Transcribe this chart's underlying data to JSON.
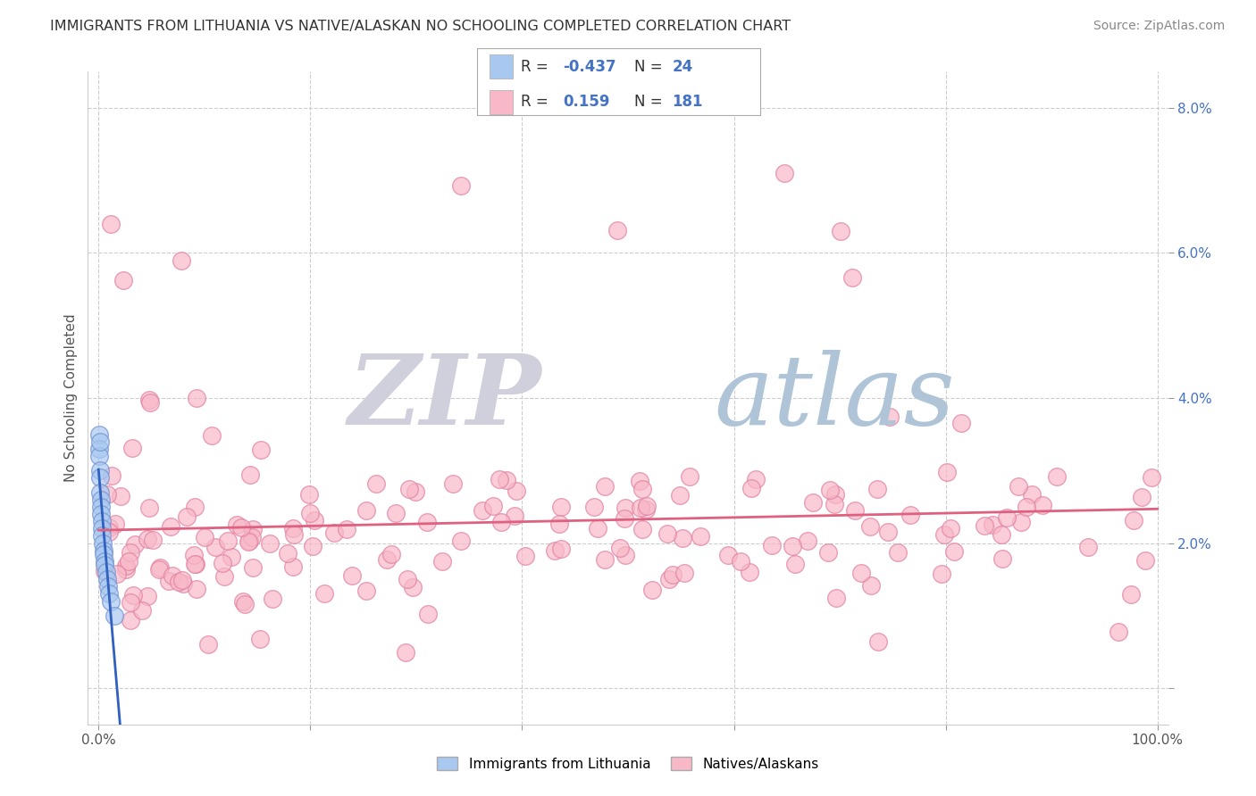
{
  "title": "IMMIGRANTS FROM LITHUANIA VS NATIVE/ALASKAN NO SCHOOLING COMPLETED CORRELATION CHART",
  "source": "Source: ZipAtlas.com",
  "ylabel": "No Schooling Completed",
  "blue_color": "#A8C8F0",
  "blue_edge": "#7090D0",
  "pink_color": "#F8B8C8",
  "pink_edge": "#E080A0",
  "trend_blue_color": "#3060C0",
  "trend_pink_color": "#E06080",
  "watermark_zip_color": "#D8D8E8",
  "watermark_atlas_color": "#B8CCE0",
  "legend_r_blue": "-0.437",
  "legend_n_blue": "24",
  "legend_r_pink": "0.159",
  "legend_n_pink": "181",
  "ytick_color": "#4472C4",
  "grid_color": "#CCCCCC",
  "title_color": "#333333",
  "source_color": "#888888",
  "ylabel_color": "#555555"
}
